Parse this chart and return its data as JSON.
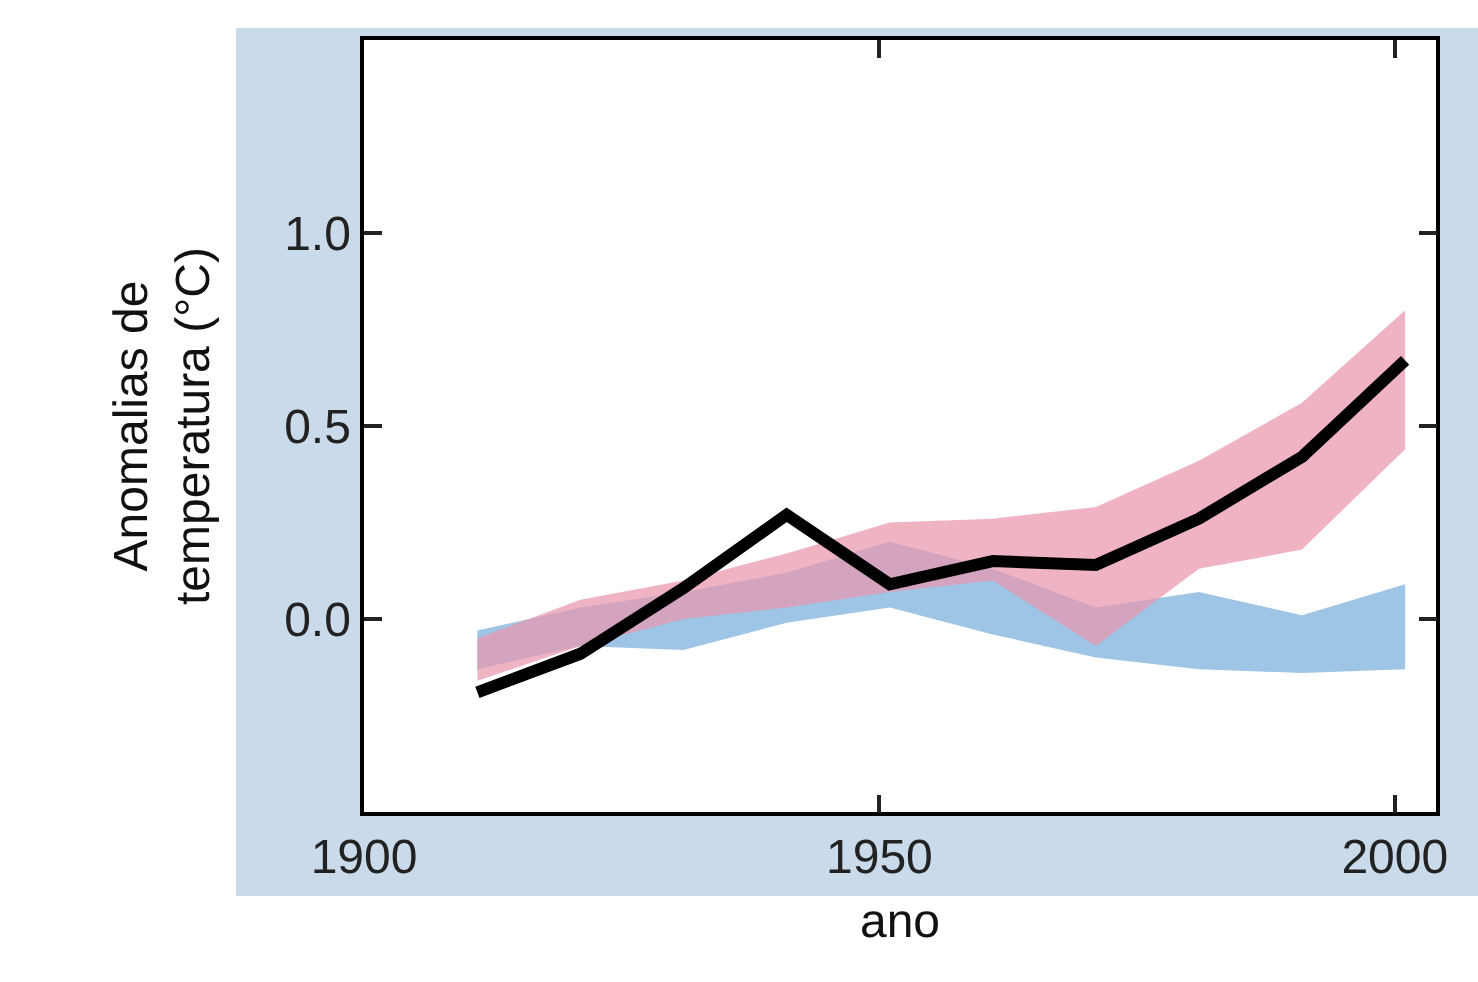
{
  "chart_data": {
    "type": "line",
    "xlabel": "ano",
    "ylabel": "Anomalias de\ntemperatura (°C)",
    "x": [
      1911,
      1921,
      1931,
      1941,
      1951,
      1961,
      1971,
      1981,
      1991,
      2001
    ],
    "xlim": [
      1900,
      2004
    ],
    "xticks": [
      1900,
      1950,
      2000
    ],
    "ylim": [
      -0.5,
      1.5
    ],
    "yticks": [
      {
        "value": 0,
        "label": "0.0"
      },
      {
        "value": 0.5,
        "label": "0.5"
      },
      {
        "value": 1,
        "label": "1.0"
      }
    ],
    "grid": false,
    "marker": "none",
    "line_style": "solid",
    "series": [
      {
        "type": "area",
        "color": "#7aaedd",
        "values": [
          null,
          null,
          null,
          null,
          null,
          null,
          null,
          null,
          null,
          null
        ],
        "lower": [
          -0.13,
          -0.07,
          -0.08,
          -0.01,
          0.03,
          -0.04,
          -0.1,
          -0.13,
          -0.14,
          -0.13
        ],
        "upper": [
          -0.03,
          0.03,
          0.07,
          0.12,
          0.2,
          0.13,
          0.03,
          0.07,
          0.01,
          0.09
        ]
      },
      {
        "type": "area",
        "color": "#e996ad",
        "values": [
          null,
          null,
          null,
          null,
          null,
          null,
          null,
          null,
          null,
          null
        ],
        "lower": [
          -0.16,
          -0.07,
          0.0,
          0.03,
          0.07,
          0.1,
          -0.07,
          0.13,
          0.18,
          0.44
        ],
        "upper": [
          -0.05,
          0.05,
          0.1,
          0.17,
          0.25,
          0.26,
          0.29,
          0.41,
          0.56,
          0.8
        ]
      },
      {
        "color": "#000000",
        "values": [
          -0.19,
          -0.09,
          0.08,
          0.27,
          0.09,
          0.15,
          0.14,
          0.26,
          0.42,
          0.67
        ]
      }
    ]
  }
}
